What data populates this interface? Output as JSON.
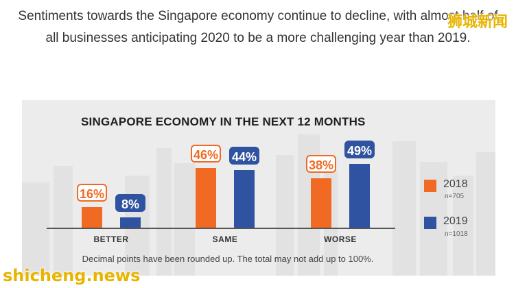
{
  "intro_text": "Sentiments towards the Singapore economy continue to decline, with almost half of all businesses anticipating 2020 to be a more challenging year than 2019.",
  "watermarks": {
    "cn": "狮城新闻",
    "en": "shicheng.news"
  },
  "colors": {
    "s2018": "#f06a24",
    "s2019": "#2f53a0",
    "panel": "#ececec",
    "skyline": "#e2e2e2"
  },
  "chart_data": {
    "type": "bar",
    "title": "SINGAPORE ECONOMY IN THE NEXT 12 MONTHS",
    "categories": [
      "BETTER",
      "SAME",
      "WORSE"
    ],
    "series": [
      {
        "name": "2018",
        "n_label": "n=705",
        "values": [
          16,
          46,
          38
        ],
        "labels": [
          "16%",
          "46%",
          "38%"
        ]
      },
      {
        "name": "2019",
        "n_label": "n=1018",
        "values": [
          8,
          44,
          49
        ],
        "labels": [
          "8%",
          "44%",
          "49%"
        ]
      }
    ],
    "ylim": [
      0,
      60
    ],
    "grid": false,
    "legend": "right",
    "note": "Decimal points have been rounded up. The total may not add up to 100%."
  }
}
